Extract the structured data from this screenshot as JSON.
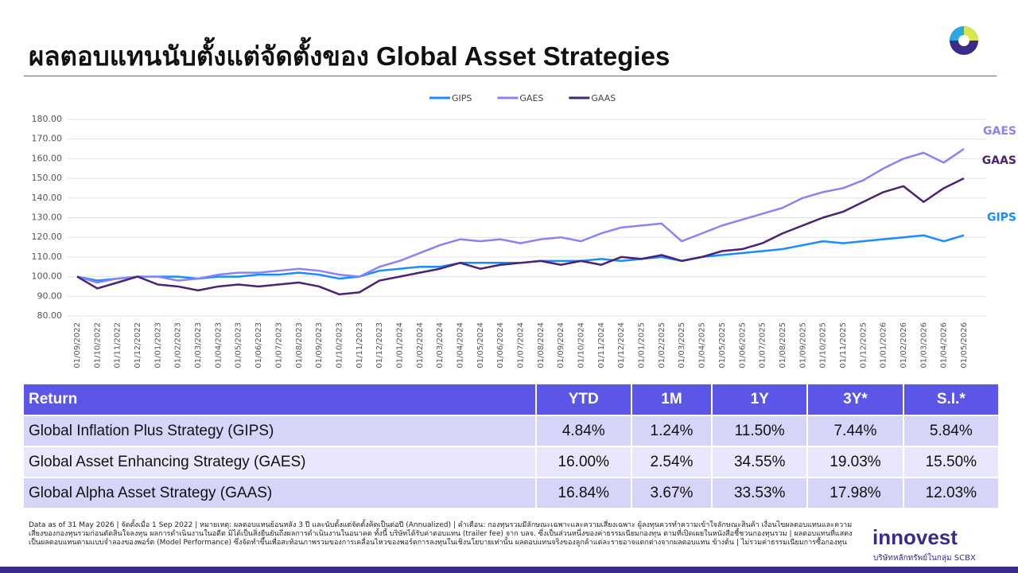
{
  "header": {
    "title": "ผลตอบแทนนับตั้งแต่จัดตั้งของ Global Asset Strategies"
  },
  "chart_data": {
    "type": "line",
    "categories": [
      "01/09/2022",
      "01/10/2022",
      "01/11/2022",
      "01/12/2022",
      "01/01/2023",
      "01/02/2023",
      "01/03/2023",
      "01/04/2023",
      "01/05/2023",
      "01/06/2023",
      "01/07/2023",
      "01/08/2023",
      "01/09/2023",
      "01/10/2023",
      "01/11/2023",
      "01/12/2023",
      "01/01/2024",
      "01/02/2024",
      "01/03/2024",
      "01/04/2024",
      "01/05/2024",
      "01/06/2024",
      "01/07/2024",
      "01/08/2024",
      "01/09/2024",
      "01/10/2024",
      "01/11/2024",
      "01/12/2024",
      "01/01/2025",
      "01/02/2025",
      "01/03/2025",
      "01/04/2025",
      "01/05/2025",
      "01/06/2025",
      "01/07/2025",
      "01/08/2025",
      "01/09/2025",
      "01/10/2025",
      "01/11/2025",
      "01/12/2025",
      "01/01/2026",
      "01/02/2026",
      "01/03/2026",
      "01/04/2026",
      "01/05/2026"
    ],
    "series": [
      {
        "name": "GIPS",
        "color": "#1a8cff",
        "values": [
          100,
          98,
          99,
          100,
          100,
          100,
          99,
          100,
          100,
          101,
          101,
          102,
          101,
          99,
          100,
          103,
          104,
          105,
          105,
          107,
          107,
          107,
          107,
          108,
          108,
          108,
          109,
          108,
          109,
          110,
          108,
          110,
          111,
          112,
          113,
          114,
          116,
          118,
          117,
          118,
          119,
          120,
          121,
          118,
          121
        ]
      },
      {
        "name": "GAES",
        "color": "#8a84f0",
        "values": [
          100,
          97,
          99,
          100,
          100,
          98,
          99,
          101,
          102,
          102,
          103,
          104,
          103,
          101,
          100,
          105,
          108,
          112,
          116,
          119,
          118,
          119,
          117,
          119,
          120,
          118,
          122,
          125,
          126,
          127,
          118,
          122,
          126,
          129,
          132,
          135,
          140,
          143,
          145,
          149,
          155,
          160,
          163,
          158,
          165
        ]
      },
      {
        "name": "GAAS",
        "color": "#4a2372",
        "values": [
          100,
          94,
          97,
          100,
          96,
          95,
          93,
          95,
          96,
          95,
          96,
          97,
          95,
          91,
          92,
          98,
          100,
          102,
          104,
          107,
          104,
          106,
          107,
          108,
          106,
          108,
          106,
          110,
          109,
          111,
          108,
          110,
          113,
          114,
          117,
          122,
          126,
          130,
          133,
          138,
          143,
          146,
          138,
          145,
          150
        ]
      }
    ],
    "ylim": [
      80,
      180
    ],
    "yticks": [
      {
        "value": 80,
        "label": "80.00"
      },
      {
        "value": 90,
        "label": "90.00"
      },
      {
        "value": 100,
        "label": "100.00"
      },
      {
        "value": 110,
        "label": "110.00"
      },
      {
        "value": 120,
        "label": "120.00"
      },
      {
        "value": 130,
        "label": "130.00"
      },
      {
        "value": 140,
        "label": "140.00"
      },
      {
        "value": 150,
        "label": "150.00"
      },
      {
        "value": 160,
        "label": "160.00"
      },
      {
        "value": 170,
        "label": "170.00"
      },
      {
        "value": 180,
        "label": "180.00"
      }
    ],
    "grid": true,
    "legend": "top"
  },
  "table": {
    "header": [
      "Return",
      "YTD",
      "1M",
      "1Y",
      "3Y*",
      "S.I.*"
    ],
    "rows": [
      [
        "Global Inflation Plus Strategy (GIPS)",
        "4.84%",
        "1.24%",
        "11.50%",
        "7.44%",
        "5.84%"
      ],
      [
        "Global Asset Enhancing Strategy (GAES)",
        "16.00%",
        "2.54%",
        "34.55%",
        "19.03%",
        "15.50%"
      ],
      [
        "Global Alpha Asset Strategy (GAAS)",
        "16.84%",
        "3.67%",
        "33.53%",
        "17.98%",
        "12.03%"
      ]
    ]
  },
  "footnote": "Data as of 31 May 2026 | จัดตั้งเมื่อ 1 Sep 2022 | หมายเหตุ: ผลตอบแทนย้อนหลัง 3 ปี และนับตั้งแต่จัดตั้งคิดเป็นต่อปี (Annualized) | คำเตือน: กองทุนรวมมีลักษณะเฉพาะและความเสี่ยงเฉพาะ ผู้ลงทุนควรทำความเข้าใจลักษณะสินค้า เงื่อนไขผลตอบแทนและความเสี่ยงของกองทุนรวมก่อนตัดสินใจลงทุน ผลการดำเนินงานในอดีต มิได้เป็นสิ่งยืนยันถึงผลการดำเนินงานในอนาคต ทั้งนี้ บริษัทได้รับค่าตอบแทน (trailer fee) จาก บลจ. ซึ่งเป็นส่วนหนึ่งของค่าธรรมเนียมกองทุน ตามที่เปิดเผยในหนังสือชี้ชวนกองทุนรวม | ผลตอบแทนที่แสดงเป็นผลตอบแทนตามแบบจำลองของพอร์ต (Model Performance) ซึ่งจัดทำขึ้นเพื่อสะท้อนภาพรวมของการเคลื่อนไหวของพอร์ตการลงทุนในเชิงนโยบายเท่านั้น ผลตอบแทนจริงของลูกค้าแต่ละรายอาจแตกต่างจากผลตอบแทน ข้างต้น | ไม่รวมค่าธรรมเนียมการซื้อกองทุน",
  "brand": {
    "name": "innovest",
    "tagline": "บริษัทหลักทรัพย์ในกลุ่ม SCBX"
  }
}
